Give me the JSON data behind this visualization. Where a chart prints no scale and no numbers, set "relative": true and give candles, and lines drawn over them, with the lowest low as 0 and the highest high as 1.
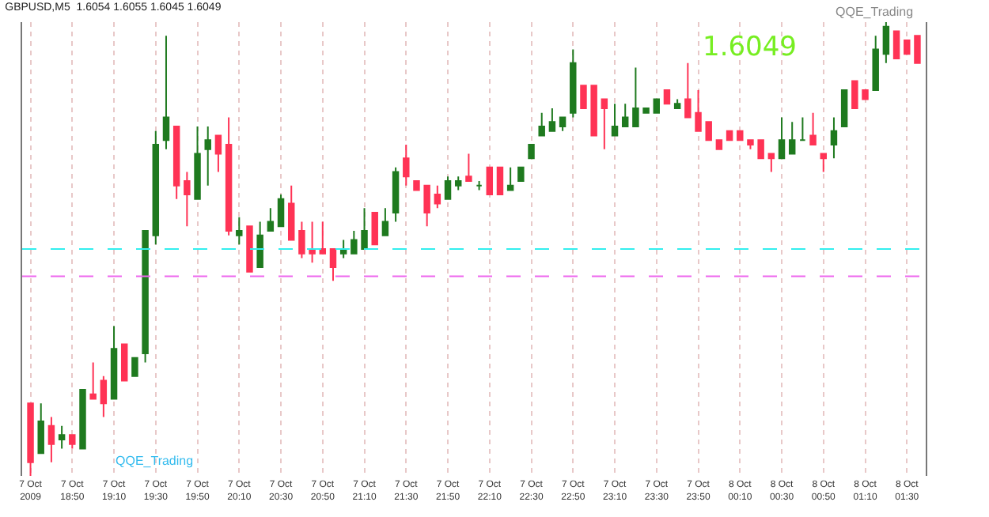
{
  "chart_data": {
    "type": "candlestick",
    "title": "GBPUSD,M5  1.6054 1.6055 1.6045 1.6049",
    "relative": true,
    "grid": "x",
    "colors": [
      "#ff3355",
      "#1f7a1f",
      "#ff3355",
      "#1f7a1f",
      "#ff3355",
      "#1f7a1f",
      "#ff3355",
      "#ff3355",
      "#1f7a1f",
      "#ff3355",
      "#1f7a1f",
      "#1f7a1f",
      "#1f7a1f",
      "#1f7a1f",
      "#ff3355",
      "#ff3355",
      "#1f7a1f",
      "#1f7a1f",
      "#ff3355",
      "#ff3355",
      "#1f7a1f",
      "#ff3355",
      "#1f7a1f",
      "#1f7a1f",
      "#1f7a1f",
      "#ff3355",
      "#ff3355",
      "#ff3355",
      "#ff3355",
      "#ff3355",
      "#1f7a1f",
      "#1f7a1f",
      "#1f7a1f",
      "#ff3355",
      "#1f7a1f",
      "#1f7a1f",
      "#ff3355",
      "#ff3355",
      "#ff3355",
      "#ff3355",
      "#1f7a1f",
      "#1f7a1f",
      "#ff3355",
      "#1f7a1f",
      "#ff3355",
      "#ff3355",
      "#1f7a1f",
      "#1f7a1f",
      "#1f7a1f",
      "#1f7a1f",
      "#1f7a1f",
      "#1f7a1f",
      "#1f7a1f",
      "#ff3355",
      "#ff3355",
      "#ff3355",
      "#1f7a1f",
      "#1f7a1f",
      "#1f7a1f",
      "#1f7a1f",
      "#1f7a1f",
      "#ff3355",
      "#1f7a1f",
      "#ff3355",
      "#ff3355",
      "#ff3355",
      "#ff3355",
      "#ff3355",
      "#ff3355",
      "#ff3355",
      "#ff3355",
      "#ff3355",
      "#1f7a1f",
      "#1f7a1f",
      "#1f7a1f",
      "#ff3355",
      "#ff3355",
      "#1f7a1f",
      "#1f7a1f",
      "#ff3355",
      "#ff3355",
      "#1f7a1f",
      "#1f7a1f",
      "#ff3355",
      "#ff3355",
      "#ff3355"
    ],
    "annotations": [
      "1.6049",
      "QQE_Trading",
      "QQE_Trading"
    ],
    "ref_lines": [
      {
        "axis": "y",
        "value": 0.5,
        "color": "#33eeee",
        "line_style": "dashed"
      },
      {
        "axis": "y",
        "value": 0.44,
        "color": "#ee66ee",
        "line_style": "dashed"
      }
    ],
    "categories": [
      "7 Oct 2009",
      null,
      null,
      null,
      "7 Oct 18:50",
      null,
      null,
      null,
      "7 Oct 19:10",
      null,
      null,
      null,
      "7 Oct 19:30",
      null,
      null,
      null,
      "7 Oct 19:50",
      null,
      null,
      null,
      "7 Oct 20:10",
      null,
      null,
      null,
      "7 Oct 20:30",
      null,
      null,
      null,
      "7 Oct 20:50",
      null,
      null,
      null,
      "7 Oct 21:10",
      null,
      null,
      null,
      "7 Oct 21:30",
      null,
      null,
      null,
      "7 Oct 21:50",
      null,
      null,
      null,
      "7 Oct 22:10",
      null,
      null,
      null,
      "7 Oct 22:30",
      null,
      null,
      null,
      "7 Oct 22:50",
      null,
      null,
      null,
      "7 Oct 23:10",
      null,
      null,
      null,
      "7 Oct 23:30",
      null,
      null,
      null,
      "7 Oct 23:50",
      null,
      null,
      null,
      "8 Oct 00:10",
      null,
      null,
      null,
      "8 Oct 00:30",
      null,
      null,
      null,
      "8 Oct 00:50",
      null,
      null,
      null,
      "8 Oct 01:10",
      null,
      null,
      null,
      "8 Oct 01:30",
      null
    ],
    "ohlc": [
      [
        0.16,
        0.16,
        0,
        0.03
      ],
      [
        0.05,
        0.16,
        0.05,
        0.12
      ],
      [
        0.11,
        0.13,
        0.03,
        0.07
      ],
      [
        0.08,
        0.11,
        0.06,
        0.09
      ],
      [
        0.09,
        0.09,
        0.06,
        0.07
      ],
      [
        0.06,
        0.19,
        0.06,
        0.19
      ],
      [
        0.18,
        0.25,
        0.17,
        0.17
      ],
      [
        0.21,
        0.22,
        0.13,
        0.16
      ],
      [
        0.17,
        0.33,
        0.17,
        0.28
      ],
      [
        0.29,
        0.29,
        0.21,
        0.21
      ],
      [
        0.22,
        0.26,
        0.22,
        0.26
      ],
      [
        0.27,
        0.54,
        0.25,
        0.54
      ],
      [
        0.53,
        0.76,
        0.51,
        0.73
      ],
      [
        0.74,
        0.97,
        0.72,
        0.79
      ],
      [
        0.77,
        0.77,
        0.61,
        0.64
      ],
      [
        0.65,
        0.67,
        0.55,
        0.62
      ],
      [
        0.61,
        0.77,
        0.61,
        0.71
      ],
      [
        0.72,
        0.77,
        0.64,
        0.74
      ],
      [
        0.75,
        0.75,
        0.67,
        0.71
      ],
      [
        0.73,
        0.79,
        0.53,
        0.54
      ],
      [
        0.53,
        0.57,
        0.51,
        0.54
      ],
      [
        0.55,
        0.55,
        0.45,
        0.45
      ],
      [
        0.46,
        0.56,
        0.46,
        0.53
      ],
      [
        0.54,
        0.59,
        0.54,
        0.56
      ],
      [
        0.55,
        0.62,
        0.55,
        0.61
      ],
      [
        0.6,
        0.64,
        0.52,
        0.52
      ],
      [
        0.54,
        0.56,
        0.48,
        0.49
      ],
      [
        0.5,
        0.56,
        0.47,
        0.49
      ],
      [
        0.5,
        0.56,
        0.49,
        0.49
      ],
      [
        0.5,
        0.5,
        0.43,
        0.46
      ],
      [
        0.49,
        0.52,
        0.48,
        0.5
      ],
      [
        0.49,
        0.54,
        0.49,
        0.52
      ],
      [
        0.5,
        0.59,
        0.5,
        0.54
      ],
      [
        0.58,
        0.58,
        0.51,
        0.51
      ],
      [
        0.53,
        0.59,
        0.53,
        0.56
      ],
      [
        0.58,
        0.68,
        0.56,
        0.67
      ],
      [
        0.7,
        0.73,
        0.64,
        0.66
      ],
      [
        0.65,
        0.65,
        0.63,
        0.63
      ],
      [
        0.64,
        0.64,
        0.55,
        0.58
      ],
      [
        0.62,
        0.64,
        0.59,
        0.6
      ],
      [
        0.61,
        0.66,
        0.61,
        0.65
      ],
      [
        0.64,
        0.66,
        0.63,
        0.65
      ],
      [
        0.66,
        0.71,
        0.65,
        0.65
      ],
      [
        0.64,
        0.65,
        0.63,
        0.64
      ],
      [
        0.68,
        0.68,
        0.62,
        0.62
      ],
      [
        0.68,
        0.68,
        0.62,
        0.62
      ],
      [
        0.63,
        0.68,
        0.63,
        0.64
      ],
      [
        0.65,
        0.68,
        0.65,
        0.68
      ],
      [
        0.7,
        0.73,
        0.7,
        0.73
      ],
      [
        0.75,
        0.8,
        0.75,
        0.77
      ],
      [
        0.76,
        0.81,
        0.76,
        0.78
      ],
      [
        0.77,
        0.79,
        0.76,
        0.79
      ],
      [
        0.8,
        0.94,
        0.79,
        0.91
      ],
      [
        0.86,
        0.86,
        0.81,
        0.81
      ],
      [
        0.86,
        0.86,
        0.75,
        0.75
      ],
      [
        0.83,
        0.83,
        0.72,
        0.81
      ],
      [
        0.75,
        0.82,
        0.75,
        0.77
      ],
      [
        0.77,
        0.82,
        0.77,
        0.79
      ],
      [
        0.77,
        0.9,
        0.77,
        0.81
      ],
      [
        0.8,
        0.81,
        0.8,
        0.81
      ],
      [
        0.8,
        0.83,
        0.8,
        0.83
      ],
      [
        0.85,
        0.85,
        0.82,
        0.82
      ],
      [
        0.81,
        0.83,
        0.81,
        0.82
      ],
      [
        0.83,
        0.91,
        0.79,
        0.79
      ],
      [
        0.8,
        0.85,
        0.76,
        0.76
      ],
      [
        0.78,
        0.78,
        0.74,
        0.74
      ],
      [
        0.74,
        0.74,
        0.72,
        0.72
      ],
      [
        0.76,
        0.76,
        0.74,
        0.74
      ],
      [
        0.76,
        0.76,
        0.74,
        0.74
      ],
      [
        0.74,
        0.74,
        0.72,
        0.73
      ],
      [
        0.74,
        0.74,
        0.7,
        0.7
      ],
      [
        0.71,
        0.71,
        0.67,
        0.7
      ],
      [
        0.7,
        0.79,
        0.7,
        0.74
      ],
      [
        0.71,
        0.78,
        0.71,
        0.74
      ],
      [
        0.74,
        0.79,
        0.74,
        0.74
      ],
      [
        0.75,
        0.8,
        0.73,
        0.73
      ],
      [
        0.71,
        0.71,
        0.67,
        0.7
      ],
      [
        0.73,
        0.79,
        0.7,
        0.76
      ],
      [
        0.77,
        0.85,
        0.77,
        0.85
      ],
      [
        0.87,
        0.87,
        0.81,
        0.81
      ],
      [
        0.85,
        0.85,
        0.83,
        0.83
      ],
      [
        0.85,
        0.97,
        0.85,
        0.94
      ],
      [
        0.93,
        1,
        0.91,
        0.99
      ],
      [
        0.98,
        0.98,
        0.92,
        0.92
      ],
      [
        0.96,
        0.96,
        0.93,
        0.93
      ],
      [
        0.97,
        0.97,
        0.91,
        0.91
      ]
    ]
  }
}
